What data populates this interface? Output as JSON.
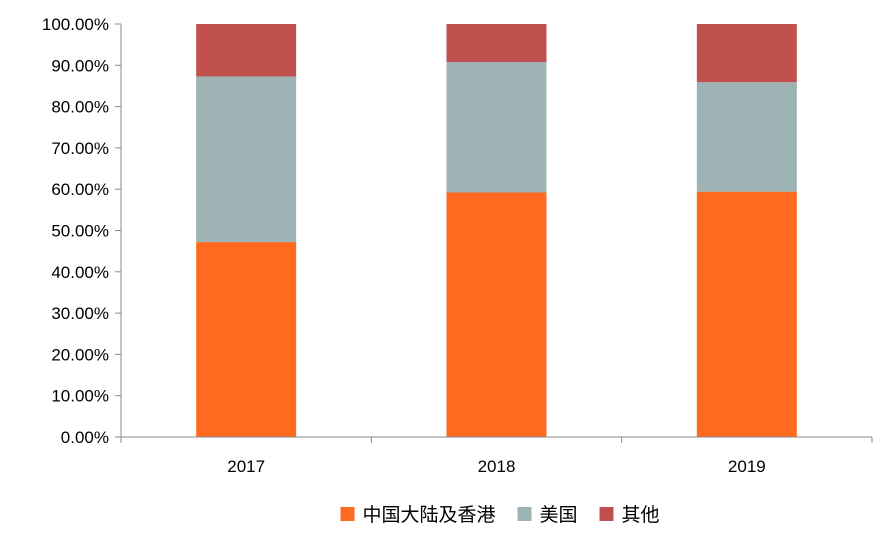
{
  "chart_data": {
    "type": "bar",
    "stacked": true,
    "categories": [
      "2017",
      "2018",
      "2019"
    ],
    "series": [
      {
        "name": "中国大陆及香港",
        "color": "#FF6A1F",
        "values": [
          47.2,
          59.2,
          59.4
        ]
      },
      {
        "name": "美国",
        "color": "#9EB4B4",
        "values": [
          40.1,
          31.6,
          26.5
        ]
      },
      {
        "name": "其他",
        "color": "#C0504D",
        "values": [
          12.7,
          9.2,
          14.1
        ]
      }
    ],
    "ylim": [
      0,
      100
    ],
    "yticks": [
      0,
      10,
      20,
      30,
      40,
      50,
      60,
      70,
      80,
      90,
      100
    ],
    "ytick_labels": [
      "0.00%",
      "10.00%",
      "20.00%",
      "30.00%",
      "40.00%",
      "50.00%",
      "60.00%",
      "70.00%",
      "80.00%",
      "90.00%",
      "100.00%"
    ],
    "title": "",
    "xlabel": "",
    "ylabel": "",
    "grid": false,
    "legend_position": "bottom"
  }
}
